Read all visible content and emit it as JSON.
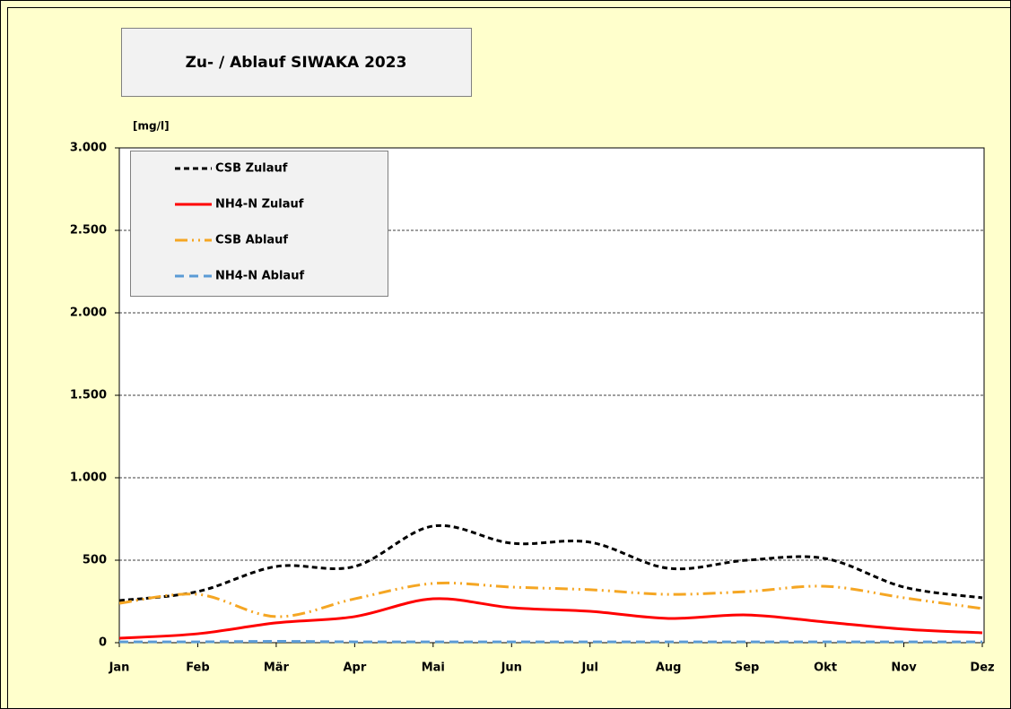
{
  "chart_data": {
    "type": "line",
    "title": "Zu- / Ablauf SIWAKA 2023",
    "y_label": "[mg/l]",
    "categories": [
      "Jan",
      "Feb",
      "Mär",
      "Apr",
      "Mai",
      "Jun",
      "Jul",
      "Aug",
      "Sep",
      "Okt",
      "Nov",
      "Dez"
    ],
    "series": [
      {
        "name": "CSB Zulauf",
        "color": "#000000",
        "dash": "6,4",
        "values": [
          255,
          310,
          462,
          462,
          707,
          603,
          609,
          451,
          500,
          510,
          337,
          272
        ]
      },
      {
        "name": "NH4-N Zulauf",
        "color": "#ff0000",
        "dash": "none",
        "values": [
          27,
          54,
          120,
          158,
          266,
          212,
          190,
          147,
          168,
          125,
          82,
          60
        ]
      },
      {
        "name": "CSB Ablauf",
        "color": "#f5a623",
        "dash": "14,5,2,5,2,5",
        "values": [
          239,
          293,
          158,
          266,
          359,
          337,
          321,
          293,
          310,
          342,
          272,
          207
        ]
      },
      {
        "name": "NH4-N Ablauf",
        "color": "#5b9bd5",
        "dash": "10,6",
        "values": [
          5,
          5,
          8,
          5,
          5,
          5,
          5,
          5,
          5,
          5,
          5,
          5
        ]
      }
    ],
    "ylim": [
      0,
      3000
    ],
    "yticks": [
      0,
      500,
      {
        "value": 1000,
        "label": "1.000"
      },
      {
        "value": 1500,
        "label": "1.500"
      },
      {
        "value": 2000,
        "label": "2.000"
      },
      {
        "value": 2500,
        "label": "2.500"
      },
      {
        "value": 3000,
        "label": "3.000"
      }
    ],
    "grid": true,
    "legend": "upper left"
  }
}
